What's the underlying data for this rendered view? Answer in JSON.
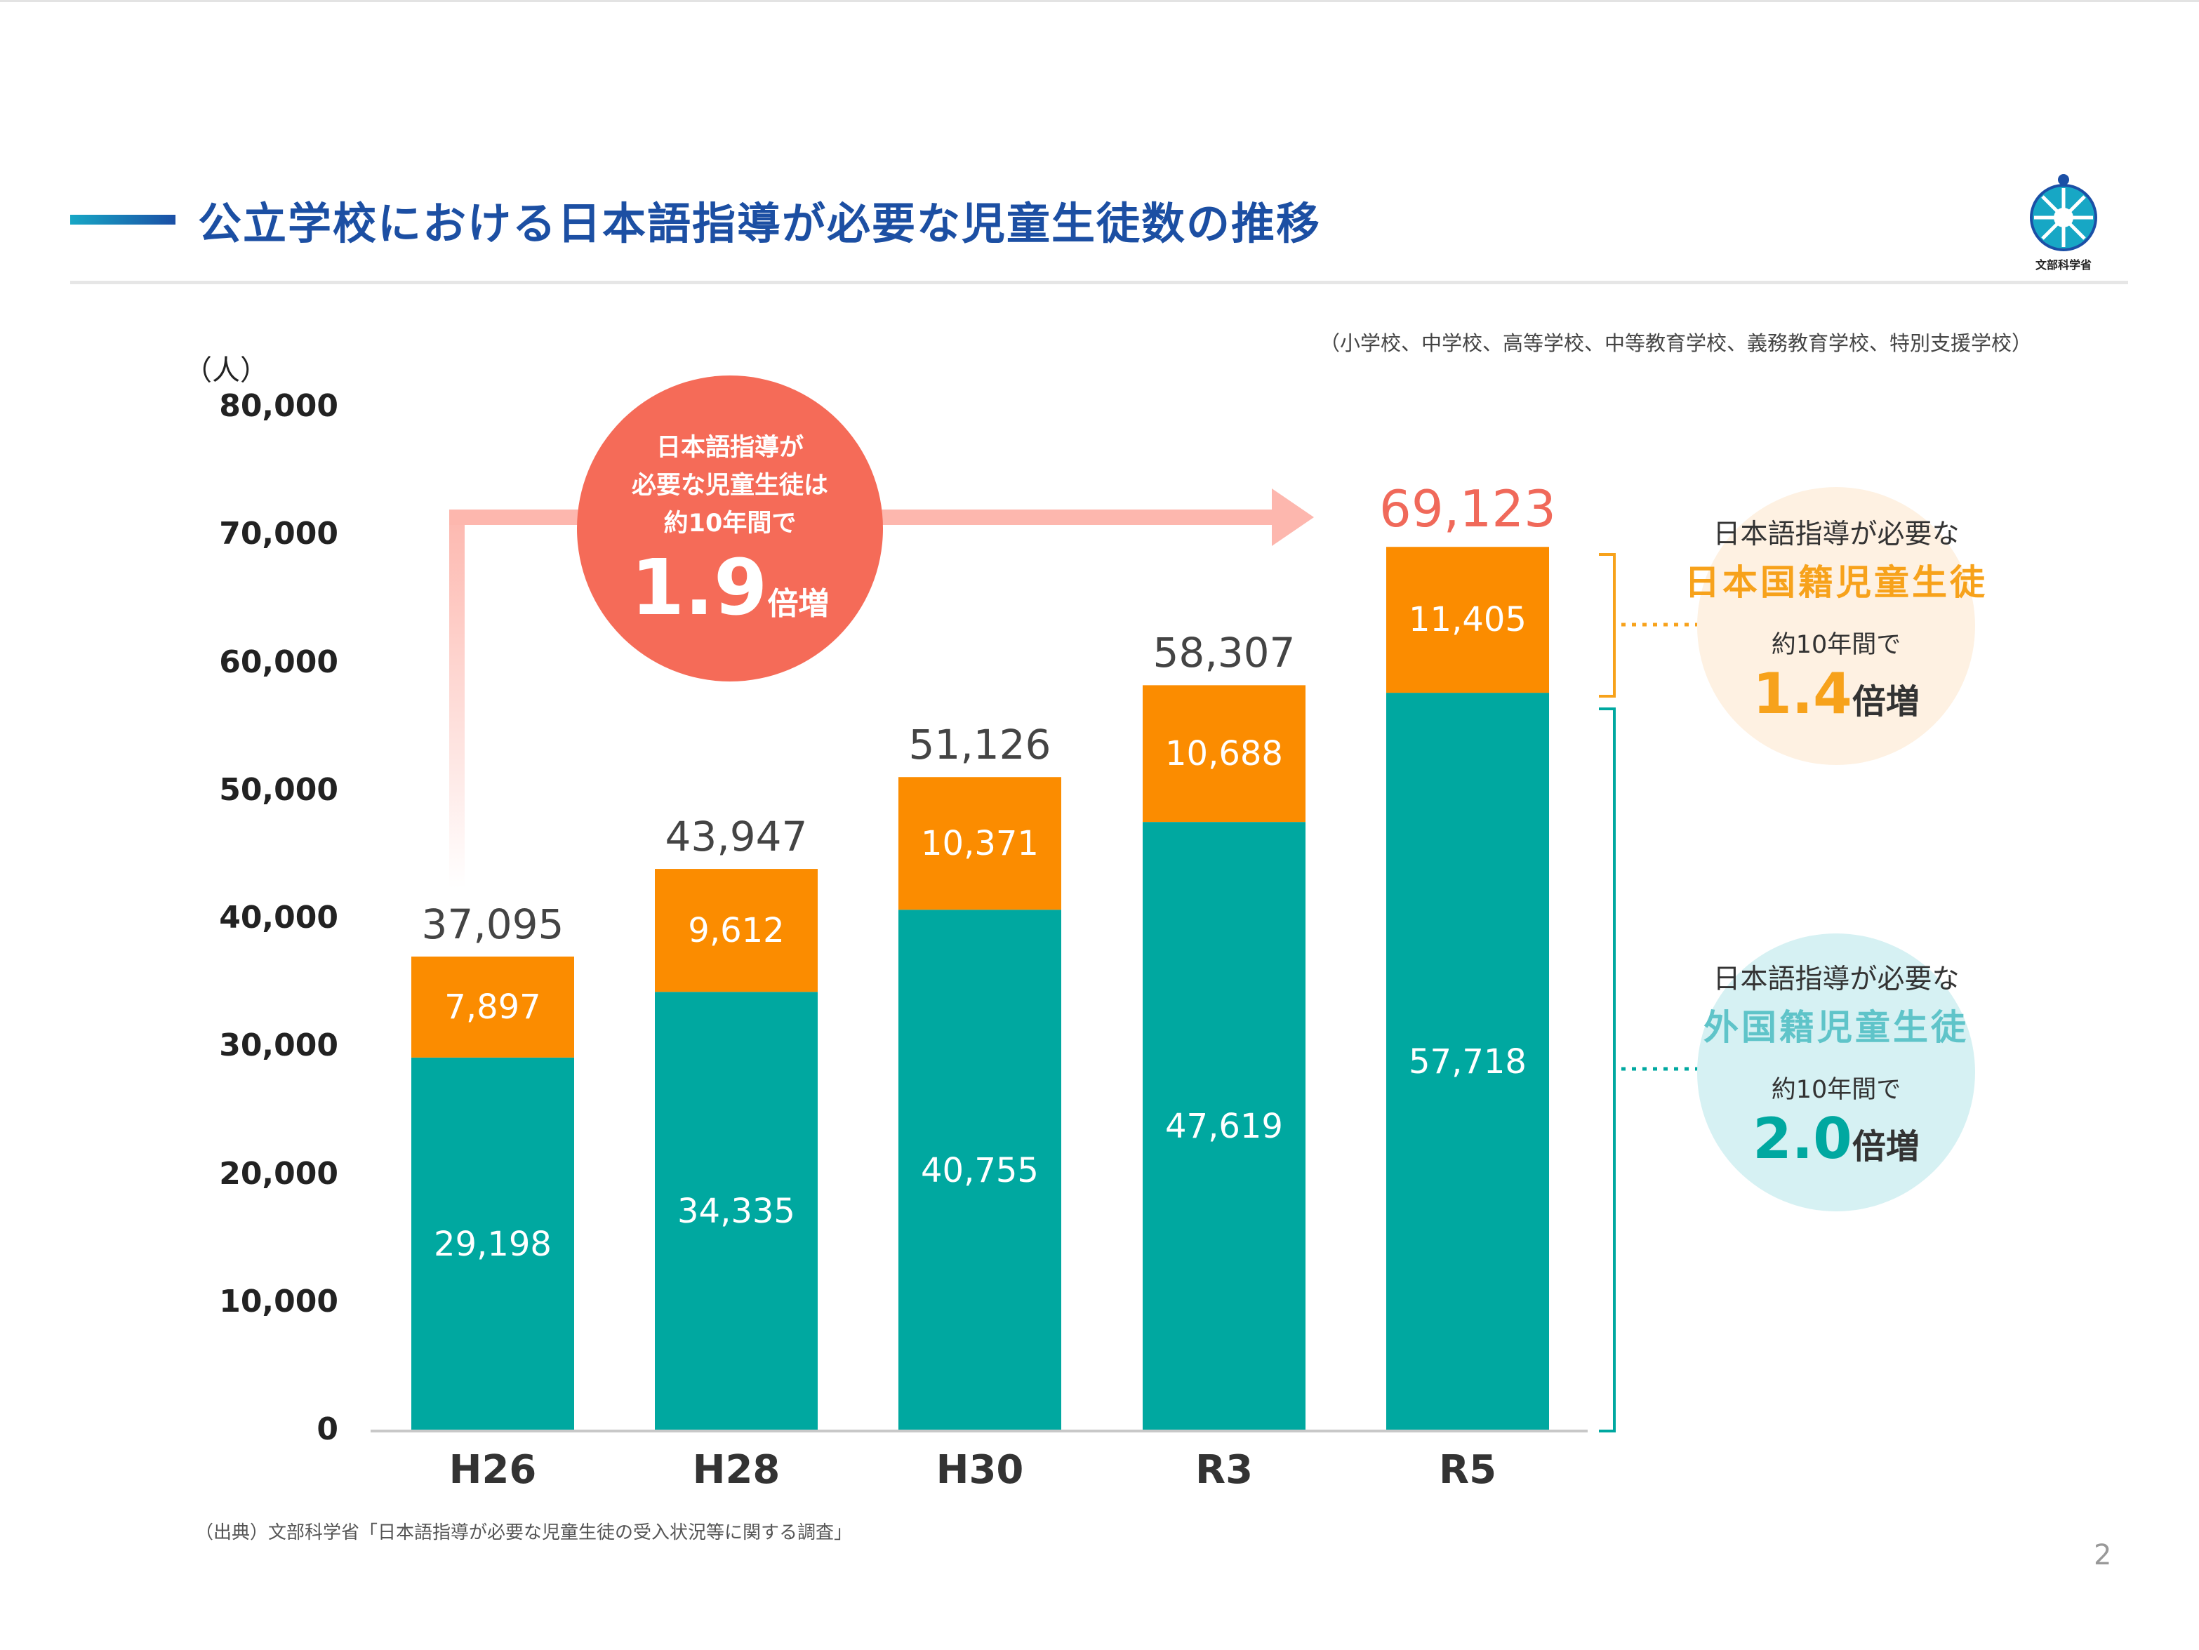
{
  "title": "公立学校における日本語指導が必要な児童生徒数の推移",
  "logo_text": "文部科学省",
  "school_note": "（小学校、中学校、高等学校、中等教育学校、義務教育学校、特別支援学校）",
  "unit_label": "（人）",
  "source": "（出典）文部科学省「日本語指導が必要な児童生徒の受入状況等に関する調査」",
  "page_number": "2",
  "badge": {
    "lines": [
      "日本語指導が",
      "必要な児童生徒は",
      "約10年間で"
    ],
    "number": "1.9",
    "suffix": "倍増"
  },
  "japanese_callout": {
    "line1": "日本語指導が必要な",
    "accent": "日本国籍児童生徒",
    "line3": "約10年間で",
    "number": "1.4",
    "suffix": "倍増"
  },
  "foreign_callout": {
    "line1": "日本語指導が必要な",
    "accent": "外国籍児童生徒",
    "line3": "約10年間で",
    "number": "2.0",
    "suffix": "倍増"
  },
  "colors": {
    "foreign": "#00a8a0",
    "japanese": "#fb8c00",
    "badge": "#f56b58",
    "title": "#1c4fa3",
    "japanese_text": "#f7a21b",
    "foreign_text": "#5fc4c9"
  },
  "chart_data": {
    "type": "bar",
    "stacked": true,
    "categories": [
      "H26",
      "H28",
      "H30",
      "R3",
      "R5"
    ],
    "series": [
      {
        "key": "foreign",
        "values": [
          29198,
          34335,
          40755,
          47619,
          57718
        ]
      },
      {
        "key": "japanese",
        "values": [
          7897,
          9612,
          10371,
          10688,
          11405
        ]
      }
    ],
    "totals": [
      37095,
      43947,
      51126,
      58307,
      69123
    ],
    "y_ticks": [
      "0",
      "10,000",
      "20,000",
      "30,000",
      "40,000",
      "50,000",
      "60,000",
      "70,000",
      "80,000"
    ],
    "ylim": [
      0,
      80000
    ],
    "grid": false,
    "legend": "none"
  }
}
